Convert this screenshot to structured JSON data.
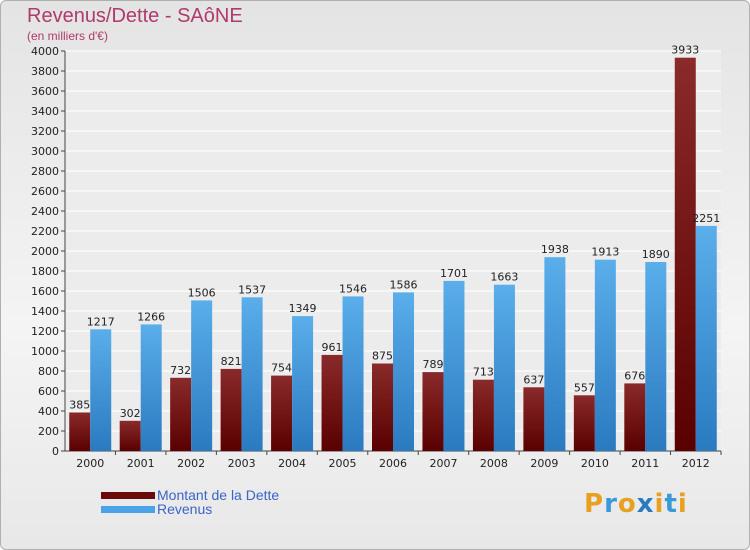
{
  "header": {
    "title": "Revenus/Dette - SAôNE",
    "subtitle": "(en milliers d'€)"
  },
  "legend": {
    "items": [
      {
        "label": "Montant de la Dette",
        "color": "#6b0a0a"
      },
      {
        "label": "Revenus",
        "color": "#4aa3e8"
      }
    ]
  },
  "logo": {
    "letters": [
      "P",
      "r",
      "o",
      "x",
      "i",
      "t",
      "i"
    ],
    "colors": [
      "#e8a020",
      "#3a9ad9",
      "#e8a020",
      "#2a7ac0",
      "#e8a020",
      "#3a9ad9",
      "#e8a020"
    ]
  },
  "chart_data": {
    "type": "bar",
    "categories": [
      "2000",
      "2001",
      "2002",
      "2003",
      "2004",
      "2005",
      "2006",
      "2007",
      "2008",
      "2009",
      "2010",
      "2011",
      "2012"
    ],
    "series": [
      {
        "name": "Montant de la Dette",
        "values": [
          385,
          302,
          732,
          821,
          754,
          961,
          875,
          789,
          713,
          637,
          557,
          676,
          3933
        ],
        "color": "#6b0a0a"
      },
      {
        "name": "Revenus",
        "values": [
          1217,
          1266,
          1506,
          1537,
          1349,
          1546,
          1586,
          1701,
          1663,
          1938,
          1913,
          1890,
          2251
        ],
        "color": "#4aa3e8"
      }
    ],
    "ylim": [
      0,
      4000
    ],
    "yticks": [
      0,
      200,
      400,
      600,
      800,
      1000,
      1200,
      1400,
      1600,
      1800,
      2000,
      2200,
      2400,
      2600,
      2800,
      3000,
      3200,
      3400,
      3600,
      3800,
      4000
    ],
    "grid": true,
    "legend_position": "bottom-left"
  }
}
